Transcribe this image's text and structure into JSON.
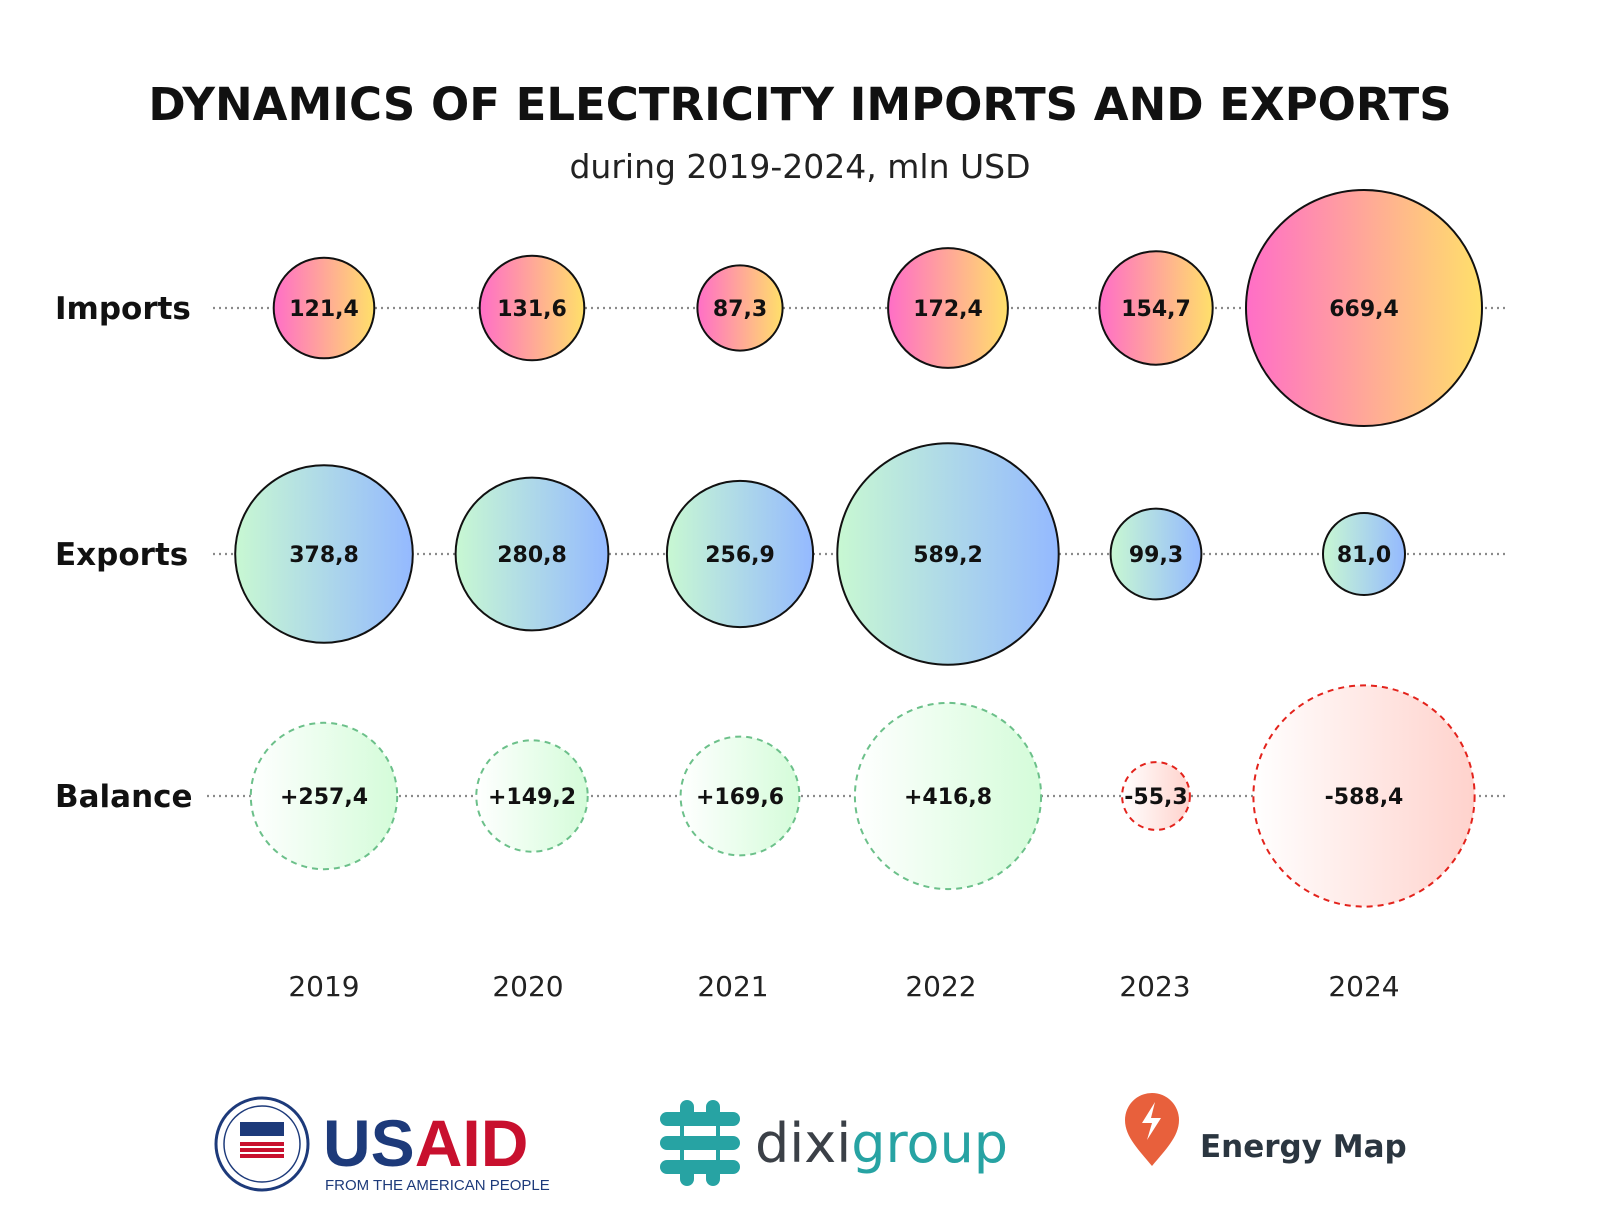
{
  "chart_data": {
    "type": "bubble",
    "title": "DYNAMICS OF ELECTRICITY IMPORTS AND EXPORTS",
    "subtitle": "during 2019-2024, mln USD",
    "categories": [
      "2019",
      "2020",
      "2021",
      "2022",
      "2023",
      "2024"
    ],
    "series": [
      {
        "name": "Imports",
        "values": [
          121.4,
          131.6,
          87.3,
          172.4,
          154.7,
          669.4
        ],
        "labels": [
          "121,4",
          "131,6",
          "87,3",
          "172,4",
          "154,7",
          "669,4"
        ]
      },
      {
        "name": "Exports",
        "values": [
          378.8,
          280.8,
          256.9,
          589.2,
          99.3,
          81.0
        ],
        "labels": [
          "378,8",
          "280,8",
          "256,9",
          "589,2",
          "99,3",
          "81,0"
        ]
      },
      {
        "name": "Balance",
        "values": [
          257.4,
          149.2,
          169.6,
          416.8,
          -55.3,
          -588.4
        ],
        "labels": [
          "+257,4",
          "+149,2",
          "+169,6",
          "+416,8",
          "-55,3",
          "-588,4"
        ]
      }
    ],
    "grid": false,
    "colors": {
      "imports_gradient": [
        "#ff6ec7",
        "#ffe06a"
      ],
      "exports_gradient": [
        "#c8f8d2",
        "#94b9ff"
      ],
      "balance_positive_fill": [
        "#ffffff",
        "#d4fcd9"
      ],
      "balance_positive_stroke": "#6cc08a",
      "balance_negative_fill": [
        "#ffffff",
        "#ffd2cc"
      ],
      "balance_negative_stroke": "#e3231c"
    }
  },
  "logos": {
    "usaid": {
      "name": "USAID",
      "tagline": "FROM THE AMERICAN PEOPLE",
      "color_blue": "#1d3a7a",
      "color_red": "#c8102e"
    },
    "dixigroup": {
      "name_part1": "dixi",
      "name_part2": "group",
      "color_dark": "#3b4047",
      "color_teal": "#27a3a3"
    },
    "energy_map": {
      "name": "Energy Map",
      "icon": "lightning-pin-icon",
      "color": "#e8603c"
    }
  }
}
